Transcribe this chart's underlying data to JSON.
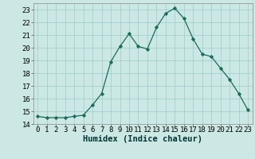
{
  "x": [
    0,
    1,
    2,
    3,
    4,
    5,
    6,
    7,
    8,
    9,
    10,
    11,
    12,
    13,
    14,
    15,
    16,
    17,
    18,
    19,
    20,
    21,
    22,
    23
  ],
  "y": [
    14.6,
    14.5,
    14.5,
    14.5,
    14.6,
    14.7,
    15.5,
    16.4,
    18.9,
    20.1,
    21.1,
    20.1,
    19.9,
    21.6,
    22.7,
    23.1,
    22.3,
    20.7,
    19.5,
    19.3,
    18.4,
    17.5,
    16.4,
    15.1
  ],
  "line_color": "#1a6b5a",
  "marker": "D",
  "marker_size": 2.2,
  "bg_color": "#cce8e4",
  "grid_color": "#99cccc",
  "xlabel": "Humidex (Indice chaleur)",
  "ylim": [
    14,
    23.5
  ],
  "xlim": [
    -0.5,
    23.5
  ],
  "yticks": [
    14,
    15,
    16,
    17,
    18,
    19,
    20,
    21,
    22,
    23
  ],
  "xticks": [
    0,
    1,
    2,
    3,
    4,
    5,
    6,
    7,
    8,
    9,
    10,
    11,
    12,
    13,
    14,
    15,
    16,
    17,
    18,
    19,
    20,
    21,
    22,
    23
  ],
  "tick_fontsize": 6.5,
  "xlabel_fontsize": 7.5
}
